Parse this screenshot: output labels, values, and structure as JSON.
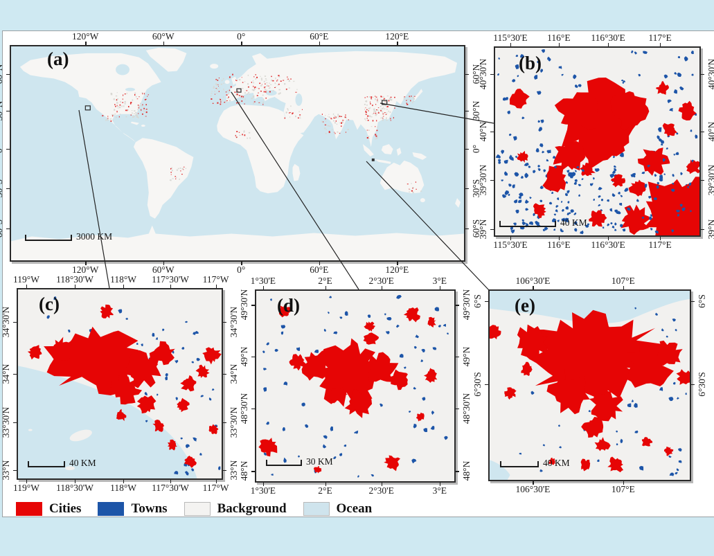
{
  "figure": {
    "colors": {
      "cities": "#e60505",
      "towns": "#1d55a8",
      "background": "#f2f1ef",
      "ocean": "#cfe6ef",
      "land": "#f7f6f4",
      "outer_background": "#cfe9f2",
      "frame": "#2a2a2a"
    },
    "legend": {
      "items": [
        {
          "label": "Cities",
          "color": "#e60505",
          "bordered": false
        },
        {
          "label": "Towns",
          "color": "#1d55a8",
          "bordered": false
        },
        {
          "label": "Background",
          "color": "#f4f3f1",
          "bordered": true
        },
        {
          "label": "Ocean",
          "color": "#cfe4ed",
          "bordered": true
        }
      ]
    },
    "panels": [
      {
        "id": "a",
        "letter": "(a)",
        "scale_text": "3000 KM",
        "x_labels": [
          "120°W",
          "60°W",
          "0°",
          "60°E",
          "120°E"
        ],
        "x_positions": [
          0.166,
          0.337,
          0.508,
          0.679,
          0.85
        ],
        "y_labels": [
          "60°N",
          "30°N",
          "0°",
          "30°S",
          "60°S"
        ],
        "y_positions": [
          0.134,
          0.303,
          0.479,
          0.661,
          0.846
        ]
      },
      {
        "id": "b",
        "letter": "(b)",
        "scale_text": "40 KM",
        "x_labels": [
          "115°30'E",
          "116°E",
          "116°30'E",
          "117°E"
        ],
        "x_positions": [
          0.08,
          0.314,
          0.552,
          0.803
        ],
        "y_labels": [
          "40°30'N",
          "40°N",
          "39°30'N",
          "39°N"
        ],
        "y_positions": [
          0.145,
          0.447,
          0.7,
          0.96
        ]
      },
      {
        "id": "c",
        "letter": "(c)",
        "scale_text": "40 KM",
        "x_labels": [
          "119°W",
          "118°30'W",
          "118°W",
          "117°30'W",
          "117°W"
        ],
        "x_positions": [
          0.047,
          0.282,
          0.517,
          0.745,
          0.965
        ],
        "y_labels": [
          "34°30'N",
          "34°N",
          "33°30'N",
          "33°N"
        ],
        "y_positions": [
          0.177,
          0.448,
          0.7,
          0.95
        ]
      },
      {
        "id": "d",
        "letter": "(d)",
        "scale_text": "30 KM",
        "x_labels": [
          "1°30'E",
          "2°E",
          "2°30'E",
          "3°E"
        ],
        "x_positions": [
          0.041,
          0.35,
          0.63,
          0.92
        ],
        "y_labels": [
          "49°30'N",
          "49°N",
          "48°30'N",
          "48°N"
        ],
        "y_positions": [
          0.08,
          0.348,
          0.617,
          0.94
        ]
      },
      {
        "id": "e",
        "letter": "(e)",
        "scale_text": "40 KM",
        "x_labels": [
          "106°30'E",
          "107°E"
        ],
        "x_positions": [
          0.22,
          0.665
        ],
        "y_labels": [
          "6°S",
          "6°30'S"
        ],
        "y_positions": [
          0.06,
          0.495
        ]
      }
    ]
  }
}
